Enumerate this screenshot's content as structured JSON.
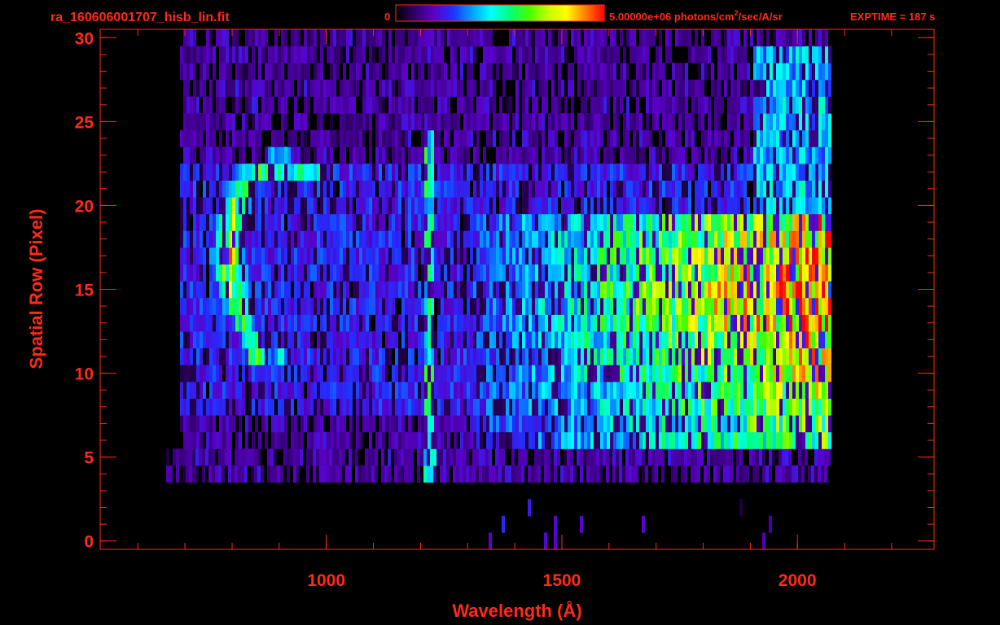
{
  "header": {
    "filename": "ra_160606001707_hisb_lin.fit",
    "colorbar_min_label": "0",
    "colorbar_max_label_pre": "5.00000e+06 photons/cm",
    "colorbar_max_label_sup": "2",
    "colorbar_max_label_post": "/sec/A/sr",
    "exptime_label": "EXPTIME = 187 s"
  },
  "colors": {
    "axis": "#ff2a1a",
    "background": "#000000",
    "colormap": [
      "#000000",
      "#30006a",
      "#5a00c8",
      "#2030ff",
      "#00a0ff",
      "#00ffff",
      "#00ff80",
      "#40ff00",
      "#c0ff00",
      "#ffff00",
      "#ff8000",
      "#ff0000"
    ]
  },
  "chart_data": {
    "type": "heatmap",
    "xlabel": "Wavelength (Å)",
    "ylabel": "Spatial Row (Pixel)",
    "xlim": [
      520,
      2290
    ],
    "ylim": [
      -0.5,
      30.5
    ],
    "x_ticks": [
      1000,
      1500,
      2000
    ],
    "y_ticks": [
      0,
      5,
      10,
      15,
      20,
      25,
      30
    ],
    "x_minor_step": 100,
    "y_minor_step": 1,
    "rows": 31,
    "wavelength_range": [
      690,
      2070
    ],
    "colorbar_range": [
      0,
      5000000
    ],
    "colorbar_units": "photons/cm²/sec/A/sr",
    "features": [
      {
        "name": "bright arc",
        "x_range": [
          780,
          900
        ],
        "y_range": [
          11,
          23
        ],
        "peak_fraction": 0.95
      },
      {
        "name": "emission line",
        "x": 1216,
        "y_range": [
          4,
          24
        ],
        "peak_fraction": 0.55
      },
      {
        "name": "continuum",
        "x_range": [
          1650,
          2070
        ],
        "y_range": [
          6,
          19
        ],
        "peak_fraction": 0.8
      }
    ]
  }
}
